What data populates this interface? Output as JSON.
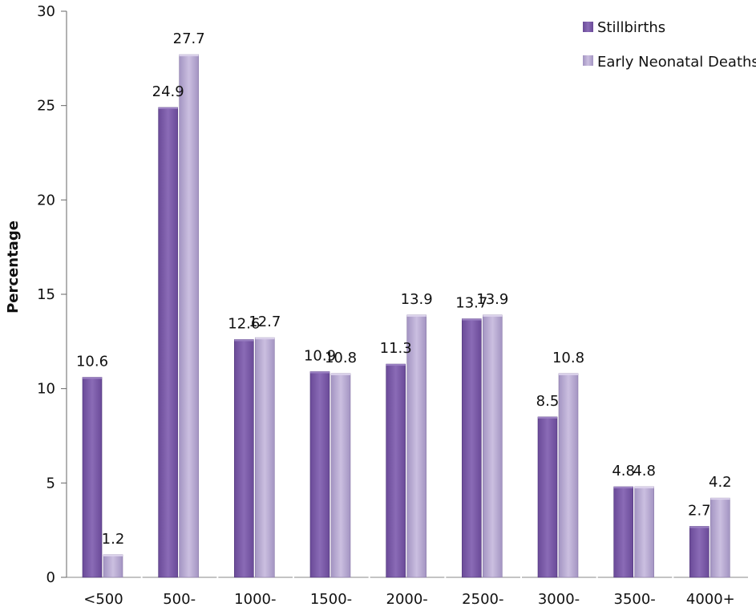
{
  "chart_data": {
    "type": "bar",
    "title": "",
    "xlabel": "",
    "ylabel": "Percentage",
    "ylim": [
      0,
      30
    ],
    "yticks": [
      0,
      5,
      10,
      15,
      20,
      25,
      30
    ],
    "grid": false,
    "legend_position": "top-right",
    "categories": [
      "<500",
      "500-",
      "1000-",
      "1500-",
      "2000-",
      "2500-",
      "3000-",
      "3500-",
      "4000+"
    ],
    "series": [
      {
        "name": "Stillbirths",
        "color": "#7b5ba6",
        "values": [
          10.6,
          24.9,
          12.6,
          10.9,
          11.3,
          13.7,
          8.5,
          4.8,
          2.7
        ],
        "labels": [
          "10.6",
          "24.9",
          "12.6",
          "10.9",
          "11.3",
          "13.7",
          "8.5",
          "4.8",
          "2.7"
        ]
      },
      {
        "name": "Early Neonatal Deaths",
        "color": "#b4a5cf",
        "values": [
          1.2,
          27.7,
          12.7,
          10.8,
          13.9,
          13.9,
          10.8,
          4.8,
          4.2
        ],
        "labels": [
          "1.2",
          "27.7",
          "12.7",
          "10.8",
          "13.9",
          "13.9",
          "10.8",
          "4.8",
          "4.2"
        ]
      }
    ]
  }
}
